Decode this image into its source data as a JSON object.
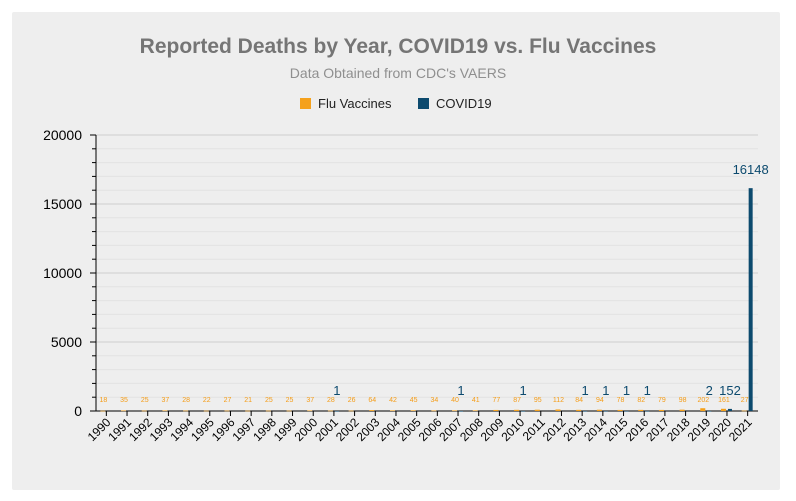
{
  "chart_data": {
    "type": "bar",
    "title": "Reported Deaths by Year, COVID19 vs. Flu Vaccines",
    "subtitle": "Data Obtained from CDC's VAERS",
    "ylim": [
      0,
      20000
    ],
    "yticks": [
      0,
      5000,
      10000,
      15000,
      20000
    ],
    "grid": true,
    "legend_position": "top-center",
    "categories": [
      "1990",
      "1991",
      "1992",
      "1993",
      "1994",
      "1995",
      "1996",
      "1997",
      "1998",
      "1999",
      "2000",
      "2001",
      "2002",
      "2003",
      "2004",
      "2005",
      "2006",
      "2007",
      "2008",
      "2009",
      "2010",
      "2011",
      "2012",
      "2013",
      "2014",
      "2015",
      "2016",
      "2017",
      "2018",
      "2019",
      "2020",
      "2021"
    ],
    "series": [
      {
        "name": "Flu Vaccines",
        "color": "#f5a11c",
        "values": [
          18,
          35,
          25,
          37,
          28,
          22,
          27,
          21,
          25,
          25,
          37,
          28,
          26,
          64,
          42,
          45,
          34,
          40,
          41,
          77,
          87,
          95,
          112,
          84,
          94,
          78,
          82,
          79,
          98,
          202,
          161,
          27
        ]
      },
      {
        "name": "COVID19",
        "color": "#0c4a6e",
        "values": [
          null,
          null,
          null,
          null,
          null,
          null,
          null,
          null,
          null,
          null,
          null,
          1,
          null,
          null,
          null,
          null,
          null,
          1,
          null,
          null,
          1,
          null,
          null,
          1,
          1,
          1,
          1,
          null,
          null,
          2,
          152,
          16148
        ]
      }
    ]
  }
}
